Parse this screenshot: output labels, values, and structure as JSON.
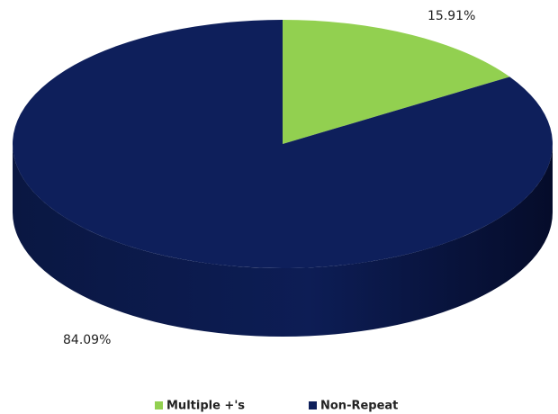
{
  "chart_data": {
    "type": "pie",
    "categories": [
      "Multiple +'s",
      "Non-Repeat"
    ],
    "values": [
      15.91,
      84.09
    ],
    "value_labels": [
      "15.91%",
      "84.09%"
    ],
    "colors": [
      "#92d050",
      "#0e1f5b"
    ],
    "legend": "bottom"
  }
}
